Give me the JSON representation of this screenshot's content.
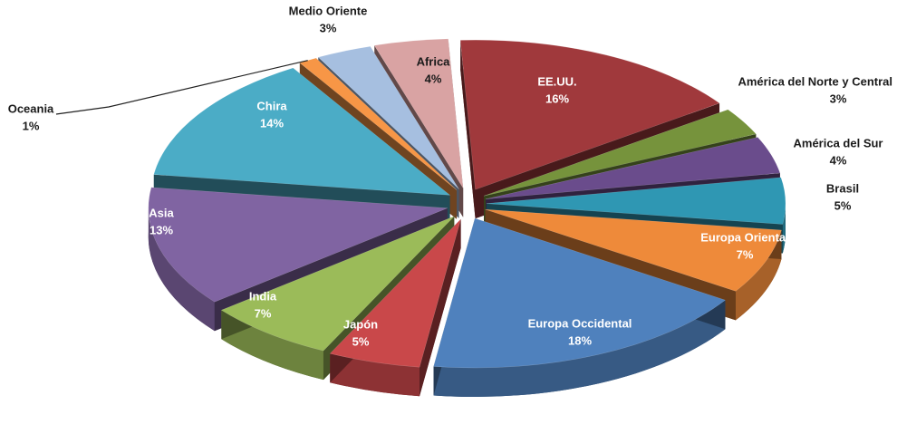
{
  "chart_data": {
    "type": "pie",
    "categories": [
      "EE.UU.",
      "América del Norte y Central",
      "América del Sur",
      "Brasil",
      "Europa Oriental",
      "Europa Occidental",
      "Japón",
      "India",
      "Asia",
      "Chira",
      "Oceania",
      "Medio Oriente",
      "Africa"
    ],
    "values": [
      16,
      3,
      4,
      5,
      7,
      18,
      5,
      7,
      13,
      14,
      1,
      3,
      4
    ],
    "value_labels": [
      "16%",
      "3%",
      "4%",
      "5%",
      "7%",
      "18%",
      "5%",
      "7%",
      "13%",
      "14%",
      "1%",
      "3%",
      "4%"
    ],
    "colors": [
      "#a0393c",
      "#76933c",
      "#6a4c8c",
      "#2f97b3",
      "#ee8a3a",
      "#4f81bd",
      "#c9484a",
      "#9bbb59",
      "#8064a2",
      "#4bacc6",
      "#f79646",
      "#a6bfe0",
      "#d9a3a3"
    ]
  }
}
